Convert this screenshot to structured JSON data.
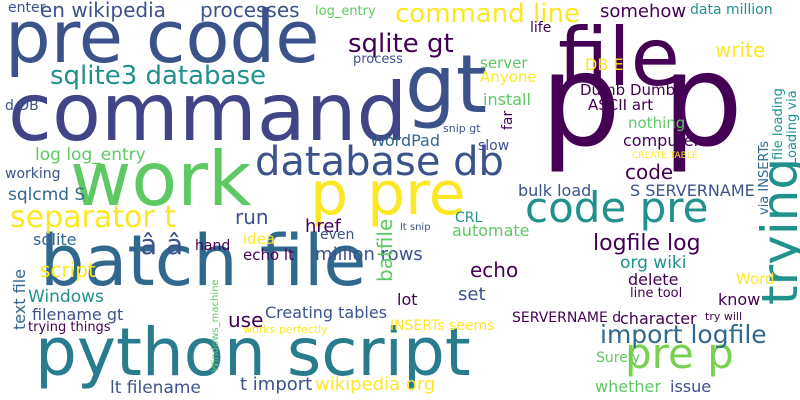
{
  "words": [
    {
      "text": "pre code",
      "color": "#3b528b"
    },
    {
      "text": "file",
      "color": "#440154"
    },
    {
      "text": "p p",
      "color": "#440154"
    },
    {
      "text": "command",
      "color": "#414487"
    },
    {
      "text": "gt",
      "color": "#3b528b"
    },
    {
      "text": "work",
      "color": "#5ec962"
    },
    {
      "text": "p pre",
      "color": "#fde725"
    },
    {
      "text": "database db",
      "color": "#3b528b"
    },
    {
      "text": "code pre",
      "color": "#21918c"
    },
    {
      "text": "trying",
      "color": "#21918c"
    },
    {
      "text": "batch file",
      "color": "#31688e"
    },
    {
      "text": "python script",
      "color": "#287c8e"
    },
    {
      "text": "pre p",
      "color": "#7ad151"
    },
    {
      "text": "import logfile",
      "color": "#31688e"
    },
    {
      "text": "separator t",
      "color": "#fde725"
    },
    {
      "text": "sqlite3 database",
      "color": "#21918c"
    },
    {
      "text": "command line",
      "color": "#fde725"
    },
    {
      "text": "sqlite gt",
      "color": "#440154"
    },
    {
      "text": "en wikipedia",
      "color": "#3b528b"
    },
    {
      "text": "processes",
      "color": "#3b528b"
    },
    {
      "text": "enter",
      "color": "#3b528b"
    },
    {
      "text": "log_entry",
      "color": "#5ec962"
    },
    {
      "text": "somehow",
      "color": "#440154"
    },
    {
      "text": "data million",
      "color": "#21918c"
    },
    {
      "text": "write",
      "color": "#fde725"
    },
    {
      "text": "DB E",
      "color": "#fde725"
    },
    {
      "text": "server",
      "color": "#5ec962"
    },
    {
      "text": "Anyone",
      "color": "#fde725"
    },
    {
      "text": "process",
      "color": "#3b528b"
    },
    {
      "text": "install",
      "color": "#5ec962"
    },
    {
      "text": "Dumb Dumb",
      "color": "#440154"
    },
    {
      "text": "ASCII art",
      "color": "#440154"
    },
    {
      "text": "nothing",
      "color": "#5ec962"
    },
    {
      "text": "computer",
      "color": "#440154"
    },
    {
      "text": "CREATE TABLE",
      "color": "#fde725"
    },
    {
      "text": "code",
      "color": "#440154"
    },
    {
      "text": "S SERVERNAME",
      "color": "#3b528b"
    },
    {
      "text": "WordPad",
      "color": "#31688e"
    },
    {
      "text": "slow",
      "color": "#3b528b"
    },
    {
      "text": "log log_entry",
      "color": "#5ec962"
    },
    {
      "text": "working",
      "color": "#3b528b"
    },
    {
      "text": "sqlcmd S",
      "color": "#31688e"
    },
    {
      "text": "d DB",
      "color": "#3b528b"
    },
    {
      "text": "href",
      "color": "#440154"
    },
    {
      "text": "run",
      "color": "#3b528b"
    },
    {
      "text": "bulk load",
      "color": "#3b528b"
    },
    {
      "text": "CRL",
      "color": "#21918c"
    },
    {
      "text": "even",
      "color": "#3b528b"
    },
    {
      "text": "automate",
      "color": "#5ec962"
    },
    {
      "text": "logfile log",
      "color": "#440154"
    },
    {
      "text": "org wiki",
      "color": "#21918c"
    },
    {
      "text": "million rows",
      "color": "#3b528b"
    },
    {
      "text": "batfile",
      "color": "#5ec962"
    },
    {
      "text": "idea",
      "color": "#fde725"
    },
    {
      "text": "echo lt",
      "color": "#440154"
    },
    {
      "text": "sqlite",
      "color": "#31688e"
    },
    {
      "text": "hand",
      "color": "#440154"
    },
    {
      "text": "script",
      "color": "#fde725"
    },
    {
      "text": "Windows",
      "color": "#21918c"
    },
    {
      "text": "text file",
      "color": "#31688e"
    },
    {
      "text": "filename gt",
      "color": "#3b528b"
    },
    {
      "text": "trying things",
      "color": "#440154"
    },
    {
      "text": "use",
      "color": "#440154"
    },
    {
      "text": "Creating tables",
      "color": "#3b528b"
    },
    {
      "text": "works perfectly",
      "color": "#fde725"
    },
    {
      "text": "INSERTs seems",
      "color": "#fde725"
    },
    {
      "text": "set",
      "color": "#3b528b"
    },
    {
      "text": "lot",
      "color": "#440154"
    },
    {
      "text": "SERVERNAME d",
      "color": "#440154"
    },
    {
      "text": "delete",
      "color": "#440154"
    },
    {
      "text": "line tool",
      "color": "#440154"
    },
    {
      "text": "know",
      "color": "#440154"
    },
    {
      "text": "character",
      "color": "#440154"
    },
    {
      "text": "try will",
      "color": "#440154"
    },
    {
      "text": "Word",
      "color": "#fde725"
    },
    {
      "text": "echo",
      "color": "#440154"
    },
    {
      "text": "Surely",
      "color": "#5ec962"
    },
    {
      "text": "whether",
      "color": "#5ec962"
    },
    {
      "text": "issue",
      "color": "#3b528b"
    },
    {
      "text": "lt filename",
      "color": "#3b528b"
    },
    {
      "text": "t import",
      "color": "#3b528b"
    },
    {
      "text": "wikipedia org",
      "color": "#fde725"
    },
    {
      "text": "â â",
      "color": "#3b528b"
    },
    {
      "text": "life",
      "color": "#440154"
    },
    {
      "text": "via INSERTs",
      "color": "#31688e"
    },
    {
      "text": "file loading",
      "color": "#21918c"
    },
    {
      "text": "Loading via",
      "color": "#21918c"
    },
    {
      "text": "snip gt",
      "color": "#3b528b"
    },
    {
      "text": "lt snip",
      "color": "#3b528b"
    },
    {
      "text": "far",
      "color": "#440154"
    },
    {
      "text": "Windows_machine",
      "color": "#5ec962"
    }
  ]
}
